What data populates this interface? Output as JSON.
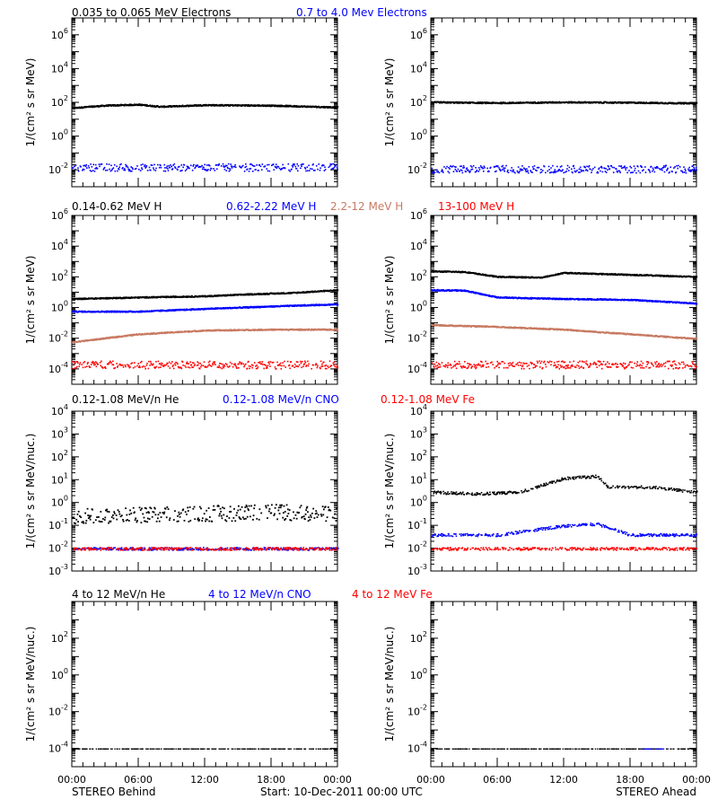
{
  "colors": {
    "black": "#000000",
    "blue": "#0000ff",
    "tan": "#c87a62",
    "red": "#ff0000",
    "ticks": "#000000"
  },
  "xaxis": {
    "tick_labels": [
      "00:00",
      "06:00",
      "12:00",
      "18:00",
      "00:00"
    ],
    "left_label": "STEREO Behind",
    "center_label": "Start: 10-Dec-2011 00:00 UTC",
    "right_label": "STEREO Ahead"
  },
  "rows": [
    {
      "legend": [
        {
          "text": "0.035 to 0.065 MeV Electrons",
          "color": "#000000"
        },
        {
          "text": "0.7 to 4.0 Mev Electrons",
          "color": "#0000ff"
        }
      ],
      "ylabel": "1/(cm² s sr MeV)",
      "ylim_log10": [
        -3,
        7
      ],
      "ytick_exponents": [
        -2,
        0,
        2,
        4,
        6
      ]
    },
    {
      "legend": [
        {
          "text": "0.14-0.62 MeV H",
          "color": "#000000"
        },
        {
          "text": "0.62-2.22 MeV H",
          "color": "#0000ff"
        },
        {
          "text": "2.2-12 MeV H",
          "color": "#c87a62"
        },
        {
          "text": "13-100 MeV H",
          "color": "#ff0000"
        }
      ],
      "ylabel": "1/(cm² s sr MeV)",
      "ylim_log10": [
        -5,
        6
      ],
      "ytick_exponents": [
        -4,
        -2,
        0,
        2,
        4,
        6
      ]
    },
    {
      "legend": [
        {
          "text": "0.12-1.08 MeV/n He",
          "color": "#000000"
        },
        {
          "text": "0.12-1.08 MeV/n CNO",
          "color": "#0000ff"
        },
        {
          "text": "0.12-1.08 MeV Fe",
          "color": "#ff0000"
        }
      ],
      "ylabel": "1/(cm² s sr MeV/nuc.)",
      "ylim_log10": [
        -3,
        4
      ],
      "ytick_exponents": [
        -3,
        -2,
        -1,
        0,
        1,
        2,
        3,
        4
      ]
    },
    {
      "legend": [
        {
          "text": "4 to 12 MeV/n He",
          "color": "#000000"
        },
        {
          "text": "4 to 12 MeV/n CNO",
          "color": "#0000ff"
        },
        {
          "text": "4 to 12 MeV Fe",
          "color": "#ff0000"
        }
      ],
      "ylabel": "1/(cm² s sr MeV/nuc.)",
      "ylim_log10": [
        -5,
        4
      ],
      "ytick_exponents": [
        -4,
        -2,
        0,
        2
      ]
    }
  ],
  "chart_data": [
    {
      "type": "scatter",
      "panel": "electrons-behind",
      "xlim_hours": [
        0,
        24
      ],
      "series": [
        {
          "name": "0.035 to 0.065 MeV Electrons",
          "color": "#000000",
          "x": [
            0,
            3,
            6,
            8,
            12,
            18,
            24
          ],
          "y": [
            50,
            70,
            80,
            60,
            75,
            70,
            55
          ]
        },
        {
          "name": "0.7 to 4.0 Mev Electrons",
          "color": "#0000ff",
          "x": [
            0,
            6,
            12,
            18,
            24
          ],
          "y": [
            0.015,
            0.015,
            0.015,
            0.015,
            0.015
          ]
        }
      ]
    },
    {
      "type": "scatter",
      "panel": "electrons-ahead",
      "xlim_hours": [
        0,
        24
      ],
      "series": [
        {
          "name": "0.035 to 0.065 MeV Electrons",
          "color": "#000000",
          "x": [
            0,
            6,
            12,
            18,
            24
          ],
          "y": [
            110,
            100,
            110,
            105,
            95
          ]
        },
        {
          "name": "0.7 to 4.0 Mev Electrons",
          "color": "#0000ff",
          "x": [
            0,
            6,
            12,
            18,
            24
          ],
          "y": [
            0.012,
            0.012,
            0.012,
            0.012,
            0.012
          ]
        }
      ]
    },
    {
      "type": "scatter",
      "panel": "protons-behind",
      "xlim_hours": [
        0,
        24
      ],
      "series": [
        {
          "name": "0.14-0.62 MeV H",
          "color": "#000000",
          "x": [
            0,
            6,
            12,
            16,
            20,
            24
          ],
          "y": [
            4,
            5,
            6,
            8,
            10,
            15
          ]
        },
        {
          "name": "0.62-2.22 MeV H",
          "color": "#0000ff",
          "x": [
            0,
            6,
            12,
            18,
            24
          ],
          "y": [
            0.6,
            0.6,
            0.9,
            1.3,
            1.8
          ]
        },
        {
          "name": "2.2-12 MeV H",
          "color": "#c87a62",
          "x": [
            0,
            6,
            12,
            18,
            24
          ],
          "y": [
            0.006,
            0.02,
            0.035,
            0.04,
            0.04
          ]
        },
        {
          "name": "13-100 MeV H",
          "color": "#ff0000",
          "x": [
            0,
            6,
            12,
            18,
            24
          ],
          "y": [
            0.0002,
            0.0002,
            0.0002,
            0.0002,
            0.0002
          ]
        }
      ]
    },
    {
      "type": "scatter",
      "panel": "protons-ahead",
      "xlim_hours": [
        0,
        24
      ],
      "series": [
        {
          "name": "0.14-0.62 MeV H",
          "color": "#000000",
          "x": [
            0,
            3,
            6,
            10,
            12,
            18,
            24
          ],
          "y": [
            250,
            230,
            110,
            100,
            200,
            150,
            110
          ]
        },
        {
          "name": "0.62-2.22 MeV H",
          "color": "#0000ff",
          "x": [
            0,
            3,
            6,
            12,
            18,
            24
          ],
          "y": [
            15,
            14,
            5,
            4,
            3.5,
            2
          ]
        },
        {
          "name": "2.2-12 MeV H",
          "color": "#c87a62",
          "x": [
            0,
            6,
            12,
            18,
            24
          ],
          "y": [
            0.08,
            0.06,
            0.04,
            0.02,
            0.01
          ]
        },
        {
          "name": "13-100 MeV H",
          "color": "#ff0000",
          "x": [
            0,
            6,
            12,
            18,
            24
          ],
          "y": [
            0.0002,
            0.0002,
            0.0002,
            0.0002,
            0.0002
          ]
        }
      ]
    },
    {
      "type": "scatter",
      "panel": "heavy-ions-behind",
      "xlim_hours": [
        0,
        24
      ],
      "series": [
        {
          "name": "0.12-1.08 MeV/n He",
          "color": "#000000",
          "x": [
            0,
            6,
            12,
            18,
            24
          ],
          "y": [
            0.25,
            0.3,
            0.35,
            0.4,
            0.35
          ]
        },
        {
          "name": "0.12-1.08 MeV/n CNO",
          "color": "#0000ff",
          "x": [
            0,
            6,
            12,
            18,
            24
          ],
          "y": [
            0.01,
            0.01,
            0.01,
            0.01,
            0.01
          ]
        },
        {
          "name": "0.12-1.08 MeV Fe",
          "color": "#ff0000",
          "x": [
            0,
            6,
            12,
            18,
            24
          ],
          "y": [
            0.01,
            0.01,
            0.01,
            0.01,
            0.01
          ]
        }
      ]
    },
    {
      "type": "scatter",
      "panel": "heavy-ions-ahead",
      "xlim_hours": [
        0,
        24
      ],
      "series": [
        {
          "name": "0.12-1.08 MeV/n He",
          "color": "#000000",
          "x": [
            0,
            4,
            8,
            12,
            15,
            16,
            20,
            24
          ],
          "y": [
            3,
            2.5,
            3,
            12,
            15,
            5,
            5,
            3
          ]
        },
        {
          "name": "0.12-1.08 MeV/n CNO",
          "color": "#0000ff",
          "x": [
            0,
            6,
            12,
            15,
            18,
            24
          ],
          "y": [
            0.04,
            0.04,
            0.1,
            0.12,
            0.04,
            0.04
          ]
        },
        {
          "name": "0.12-1.08 MeV Fe",
          "color": "#ff0000",
          "x": [
            0,
            6,
            12,
            18,
            24
          ],
          "y": [
            0.01,
            0.01,
            0.01,
            0.01,
            0.01
          ]
        }
      ]
    },
    {
      "type": "scatter",
      "panel": "high-energy-ions-behind",
      "xlim_hours": [
        0,
        24
      ],
      "series": [
        {
          "name": "4 to 12 MeV/n He",
          "color": "#000000",
          "x": [
            0,
            6,
            12,
            18,
            24
          ],
          "y": [
            0.0001,
            0.0001,
            0.0001,
            0.0001,
            0.0001
          ]
        },
        {
          "name": "4 to 12 MeV/n CNO",
          "color": "#0000ff",
          "x": [],
          "y": []
        },
        {
          "name": "4 to 12 MeV Fe",
          "color": "#ff0000",
          "x": [],
          "y": []
        }
      ]
    },
    {
      "type": "scatter",
      "panel": "high-energy-ions-ahead",
      "xlim_hours": [
        0,
        24
      ],
      "series": [
        {
          "name": "4 to 12 MeV/n He",
          "color": "#000000",
          "x": [
            0,
            6,
            12,
            18,
            24
          ],
          "y": [
            0.0001,
            0.0001,
            0.0001,
            0.0001,
            0.0001
          ]
        },
        {
          "name": "4 to 12 MeV/n CNO",
          "color": "#0000ff",
          "x": [
            19,
            21
          ],
          "y": [
            0.0001,
            0.0001
          ]
        },
        {
          "name": "4 to 12 MeV Fe",
          "color": "#ff0000",
          "x": [],
          "y": []
        }
      ]
    }
  ]
}
